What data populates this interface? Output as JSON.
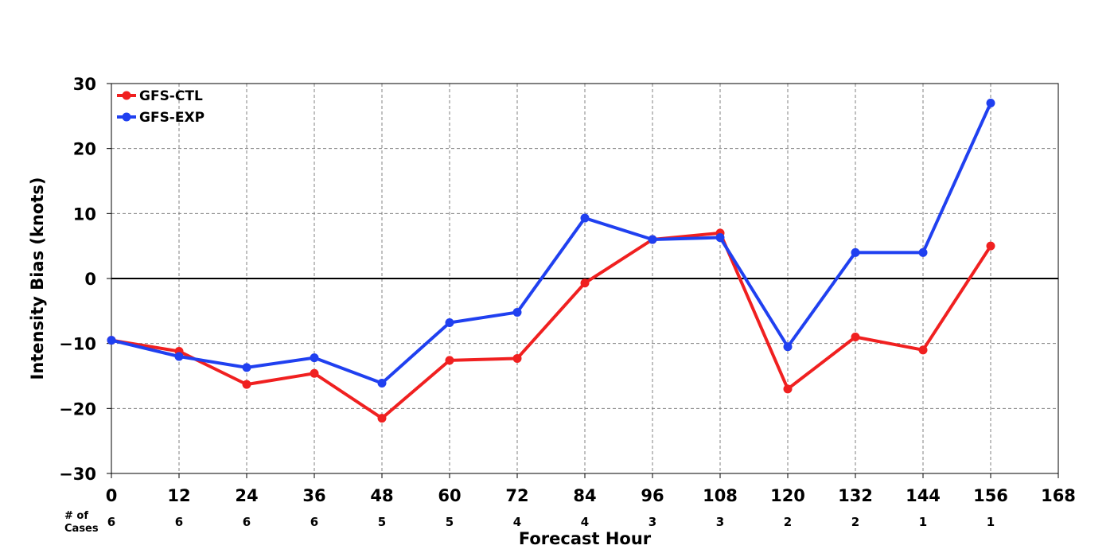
{
  "chart_data": {
    "type": "line",
    "xlabel": "Forecast Hour",
    "ylabel": "Intensity Bias (knots)",
    "xlim": [
      0,
      168
    ],
    "ylim": [
      -30,
      30
    ],
    "x_ticks": [
      0,
      12,
      24,
      36,
      48,
      60,
      72,
      84,
      96,
      108,
      120,
      132,
      144,
      156,
      168
    ],
    "y_ticks": [
      -30,
      -20,
      -10,
      0,
      10,
      20,
      30
    ],
    "y_tick_labels": [
      "−30",
      "−20",
      "−10",
      "0",
      "10",
      "20",
      "30"
    ],
    "grid": true,
    "zero_line": true,
    "legend": "top-left",
    "x": [
      0,
      12,
      24,
      36,
      48,
      60,
      72,
      84,
      96,
      108,
      120,
      132,
      144,
      156
    ],
    "series": [
      {
        "name": "GFS-CTL",
        "color": "#f02020",
        "values": [
          -9.5,
          -11.2,
          -16.3,
          -14.6,
          -21.5,
          -12.6,
          -12.3,
          -0.7,
          6.0,
          7.0,
          -17.0,
          -9.0,
          -11.0,
          5.0
        ]
      },
      {
        "name": "GFS-EXP",
        "color": "#2040f0",
        "values": [
          -9.5,
          -12.0,
          -13.7,
          -12.2,
          -16.1,
          -6.8,
          -5.2,
          9.3,
          6.0,
          6.3,
          -10.5,
          4.0,
          4.0,
          27.0
        ]
      }
    ],
    "cases_title": [
      "# of",
      "Cases"
    ],
    "cases": [
      "6",
      "6",
      "6",
      "6",
      "5",
      "5",
      "4",
      "4",
      "3",
      "3",
      "2",
      "2",
      "1",
      "1"
    ]
  }
}
